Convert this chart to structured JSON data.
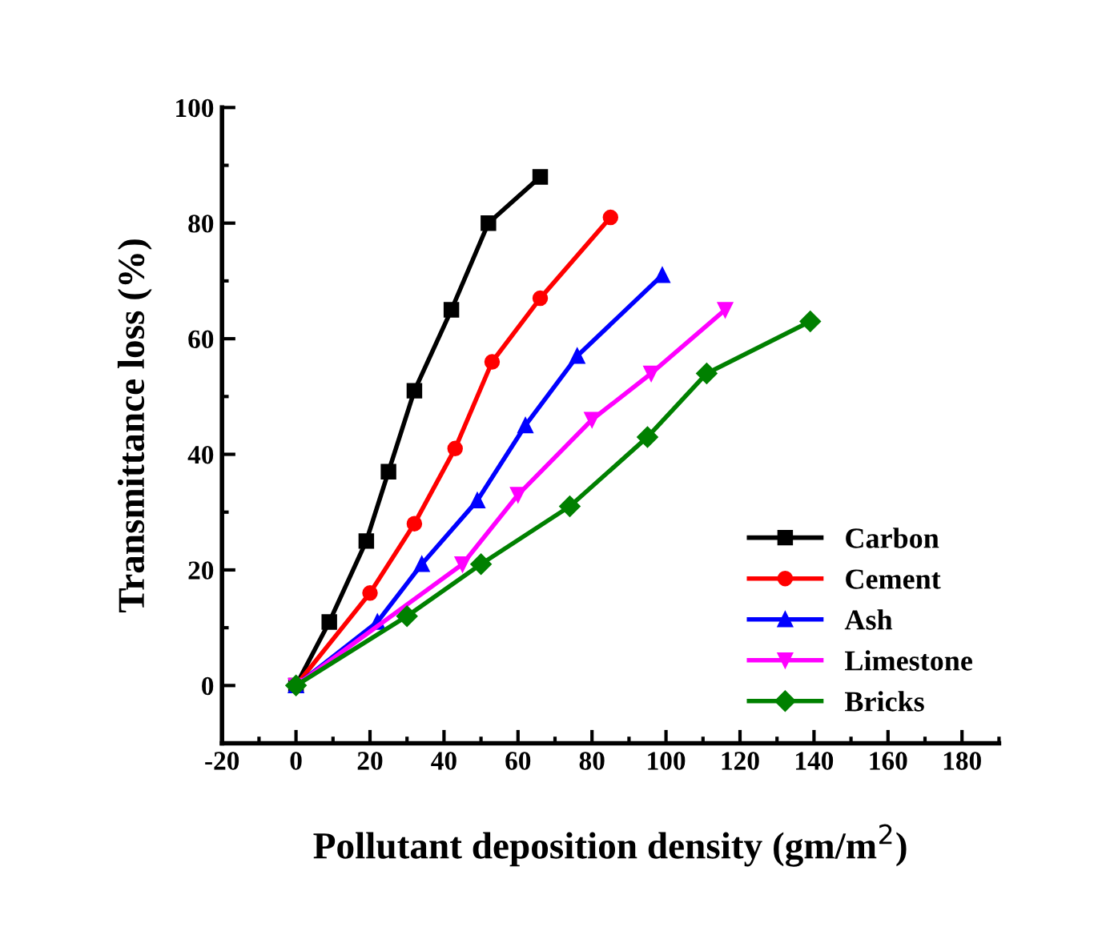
{
  "chart_data": {
    "type": "line",
    "xlabel": "Pollutant deposition density (gm/m$^{2}$)",
    "ylabel": "Transmittance loss (%)",
    "xlim": [
      -20,
      190
    ],
    "xticks": [
      -20,
      0,
      20,
      40,
      60,
      80,
      100,
      120,
      140,
      160,
      180
    ],
    "ylim": [
      -10,
      100
    ],
    "yticks": [
      0,
      20,
      40,
      60,
      80,
      100
    ],
    "grid": false,
    "legend": "bottom right",
    "line_style": "solid",
    "series": [
      {
        "name": "Carbon",
        "color": "#000000",
        "marker": "square",
        "x": [
          0,
          9,
          19,
          25,
          32,
          42,
          52,
          66
        ],
        "values": [
          0,
          11,
          25,
          37,
          51,
          65,
          80,
          88
        ]
      },
      {
        "name": "Cement",
        "color": "#ff0000",
        "marker": "circle",
        "x": [
          0,
          20,
          32,
          43,
          53,
          66,
          85
        ],
        "values": [
          0,
          16,
          28,
          41,
          56,
          67,
          81
        ]
      },
      {
        "name": "Ash",
        "color": "#0000ff",
        "marker": "triangle",
        "x": [
          0,
          22,
          34,
          49,
          62,
          76,
          99
        ],
        "values": [
          0,
          11,
          21,
          32,
          45,
          57,
          71
        ]
      },
      {
        "name": "Limestone",
        "color": "#ff00ff",
        "marker": "triangle_down",
        "x": [
          0,
          45,
          60,
          80,
          96,
          116
        ],
        "values": [
          0,
          21,
          33,
          46,
          54,
          65
        ]
      },
      {
        "name": "Bricks",
        "color": "#008000",
        "marker": "diamond",
        "x": [
          0,
          30,
          50,
          74,
          95,
          111,
          139
        ],
        "values": [
          0,
          12,
          21,
          31,
          43,
          54,
          63
        ]
      }
    ]
  }
}
